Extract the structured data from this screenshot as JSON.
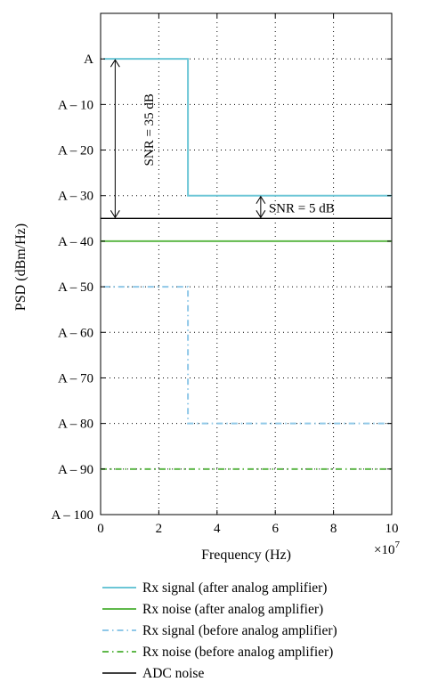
{
  "chart_data": {
    "type": "line",
    "xlabel": "Frequency (Hz)",
    "ylabel": "PSD (dBm/Hz)",
    "x_scale_note": "×10",
    "x_scale_exp": "7",
    "xlim": [
      0,
      10
    ],
    "ylim": [
      -100,
      10
    ],
    "grid": true,
    "legend_position": "bottom",
    "xticks": [
      0,
      2,
      4,
      6,
      8,
      10
    ],
    "yticks": [
      {
        "value": 0,
        "label": "A"
      },
      {
        "value": -10,
        "label": "A – 10"
      },
      {
        "value": -20,
        "label": "A – 20"
      },
      {
        "value": -30,
        "label": "A – 30"
      },
      {
        "value": -40,
        "label": "A – 40"
      },
      {
        "value": -50,
        "label": "A – 50"
      },
      {
        "value": -60,
        "label": "A – 60"
      },
      {
        "value": -70,
        "label": "A – 70"
      },
      {
        "value": -80,
        "label": "A – 80"
      },
      {
        "value": -90,
        "label": "A – 90"
      },
      {
        "value": -100,
        "label": "A – 100"
      }
    ],
    "series": [
      {
        "name": "Rx signal (after analog amplifier)",
        "color": "#6cc6d6",
        "dash": "solid",
        "x": [
          0.1,
          3,
          3,
          10
        ],
        "y": [
          0,
          0,
          -30,
          -30
        ]
      },
      {
        "name": "Rx noise (after analog amplifier)",
        "color": "#5fb84a",
        "dash": "solid",
        "x": [
          0,
          10
        ],
        "y": [
          -40,
          -40
        ]
      },
      {
        "name": "Rx signal (before analog amplifier)",
        "color": "#8fc8e8",
        "dash": "dashdot",
        "x": [
          0.1,
          3,
          3,
          10
        ],
        "y": [
          -50,
          -50,
          -80,
          -80
        ]
      },
      {
        "name": "Rx noise (before analog amplifier)",
        "color": "#5fb84a",
        "dash": "dashdot",
        "x": [
          0,
          10
        ],
        "y": [
          -90,
          -90
        ]
      },
      {
        "name": "ADC noise",
        "color": "#000000",
        "dash": "solid",
        "x": [
          0,
          10
        ],
        "y": [
          -35,
          -35
        ]
      }
    ],
    "annotations": [
      {
        "text": "SNR = 35 dB",
        "x": 0.5,
        "y_from": 0,
        "y_to": -35
      },
      {
        "text": "SNR = 5 dB",
        "x": 5.5,
        "y_from": -30,
        "y_to": -35
      }
    ]
  }
}
